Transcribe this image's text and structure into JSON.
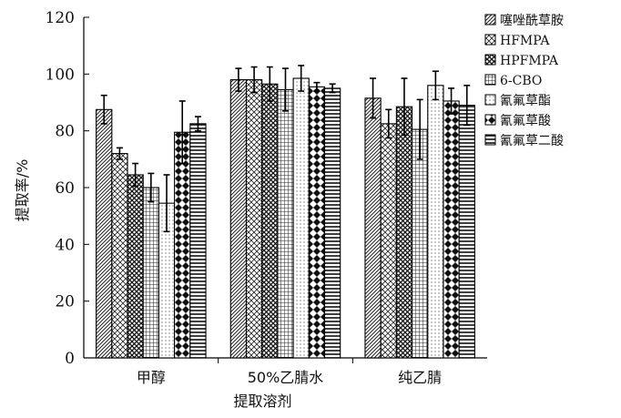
{
  "chart_data": {
    "type": "bar",
    "categories": [
      "甲醇",
      "50%乙腈水",
      "纯乙腈"
    ],
    "xlabel": "提取溶剂",
    "ylabel": "提取率/%",
    "ylim": [
      0,
      120
    ],
    "yticks": [
      0,
      20,
      40,
      60,
      80,
      100,
      120
    ],
    "grid": false,
    "legend_position": "top-right",
    "series": [
      {
        "name": "噻唑酰草胺",
        "pattern": "diag-hatch",
        "values": [
          87.5,
          98.0,
          91.5
        ],
        "errors": [
          5.0,
          4.0,
          7.0
        ]
      },
      {
        "name": "HFMPA",
        "pattern": "crosshatch",
        "values": [
          72.0,
          98.0,
          82.5
        ],
        "errors": [
          2.0,
          4.5,
          5.0
        ]
      },
      {
        "name": "HPFMPA",
        "pattern": "xcross",
        "values": [
          64.5,
          96.5,
          88.5
        ],
        "errors": [
          4.0,
          6.0,
          10.0
        ]
      },
      {
        "name": "6-CBO",
        "pattern": "grid",
        "values": [
          60.0,
          94.5,
          80.5
        ],
        "errors": [
          5.0,
          7.5,
          10.5
        ]
      },
      {
        "name": "氰氟草酯",
        "pattern": "dots",
        "values": [
          54.5,
          98.5,
          96.0
        ],
        "errors": [
          10.0,
          4.5,
          5.0
        ]
      },
      {
        "name": "氰氟草酸",
        "pattern": "checker",
        "values": [
          79.5,
          95.5,
          90.5
        ],
        "errors": [
          11.0,
          1.5,
          4.5
        ]
      },
      {
        "name": "氰氟草二酸",
        "pattern": "hlines",
        "values": [
          82.5,
          95.0,
          89.0
        ],
        "errors": [
          2.5,
          1.5,
          7.0
        ]
      }
    ]
  }
}
